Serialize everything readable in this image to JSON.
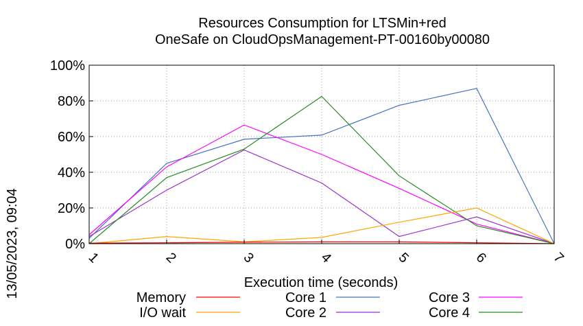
{
  "chart_data": {
    "type": "line",
    "title": "Resources Consumption for LTSMin+red",
    "subtitle": "OneSafe on CloudOpsManagement-PT-00160by00080",
    "xlabel": "Execution time (seconds)",
    "ylabel": "",
    "timestamp": "13/05/2023, 09:04",
    "xlim": [
      1,
      7
    ],
    "ylim": [
      0,
      100
    ],
    "x": [
      1,
      2,
      3,
      4,
      5,
      6,
      7
    ],
    "x_ticks": [
      "1",
      "2",
      "3",
      "4",
      "5",
      "6",
      "7"
    ],
    "y_ticks": [
      {
        "value": 0,
        "label": "0%"
      },
      {
        "value": 20,
        "label": "20%"
      },
      {
        "value": 40,
        "label": "40%"
      },
      {
        "value": 60,
        "label": "60%"
      },
      {
        "value": 80,
        "label": "80%"
      },
      {
        "value": 100,
        "label": "100%"
      }
    ],
    "grid": true,
    "legend_position": "bottom",
    "series": [
      {
        "name": "Memory",
        "color": "#ff0000",
        "values": [
          0.3,
          0.5,
          0.8,
          1.0,
          1.0,
          0.5,
          0
        ]
      },
      {
        "name": "I/O wait",
        "color": "#ffa500",
        "values": [
          0,
          4,
          1,
          3.5,
          12,
          20,
          0
        ]
      },
      {
        "name": "Core 1",
        "color": "#4472c4",
        "values": [
          3,
          45,
          58.5,
          60.8,
          77.5,
          87,
          0
        ]
      },
      {
        "name": "Core 2",
        "color": "#9932cc",
        "values": [
          4,
          30,
          52.5,
          34,
          4,
          15,
          0
        ]
      },
      {
        "name": "Core 3",
        "color": "#ff00ff",
        "values": [
          5,
          43,
          66.5,
          50,
          31,
          11,
          0
        ]
      },
      {
        "name": "Core 4",
        "color": "#228b22",
        "values": [
          0,
          37,
          53,
          82.5,
          38,
          10,
          0
        ]
      }
    ]
  }
}
